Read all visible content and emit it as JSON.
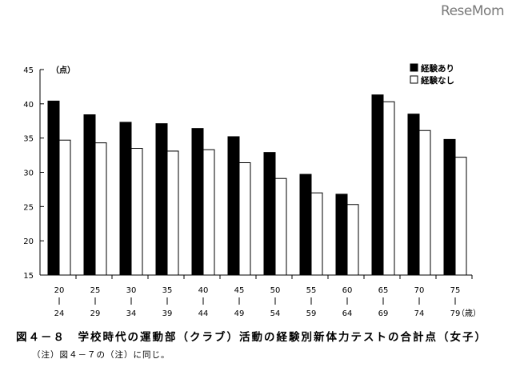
{
  "watermark": "ReseMom",
  "caption": "図４－８　学校時代の運動部（クラブ）活動の経験別新体力テストの合計点（女子）",
  "note": "（注）図４－７の（注）に同じ。",
  "chart_data": {
    "type": "bar",
    "ylabel": "（点）",
    "xunit": "（歳）",
    "ylim": [
      15,
      45
    ],
    "yticks": [
      15,
      20,
      25,
      30,
      35,
      40,
      45
    ],
    "categories": [
      [
        "20",
        "24"
      ],
      [
        "25",
        "29"
      ],
      [
        "30",
        "34"
      ],
      [
        "35",
        "39"
      ],
      [
        "40",
        "44"
      ],
      [
        "45",
        "49"
      ],
      [
        "50",
        "54"
      ],
      [
        "55",
        "59"
      ],
      [
        "60",
        "64"
      ],
      [
        "65",
        "69"
      ],
      [
        "70",
        "74"
      ],
      [
        "75",
        "79"
      ]
    ],
    "legend_position": "top-right",
    "series": [
      {
        "name": "経験あり",
        "color": "#000000",
        "values": [
          40.4,
          38.4,
          37.3,
          37.1,
          36.4,
          35.2,
          32.9,
          29.7,
          26.8,
          41.3,
          38.5,
          34.8
        ]
      },
      {
        "name": "経験なし",
        "color": "#ffffff",
        "values": [
          34.7,
          34.3,
          33.5,
          33.1,
          33.3,
          31.4,
          29.1,
          27.0,
          25.3,
          40.3,
          36.1,
          32.2
        ]
      }
    ]
  }
}
